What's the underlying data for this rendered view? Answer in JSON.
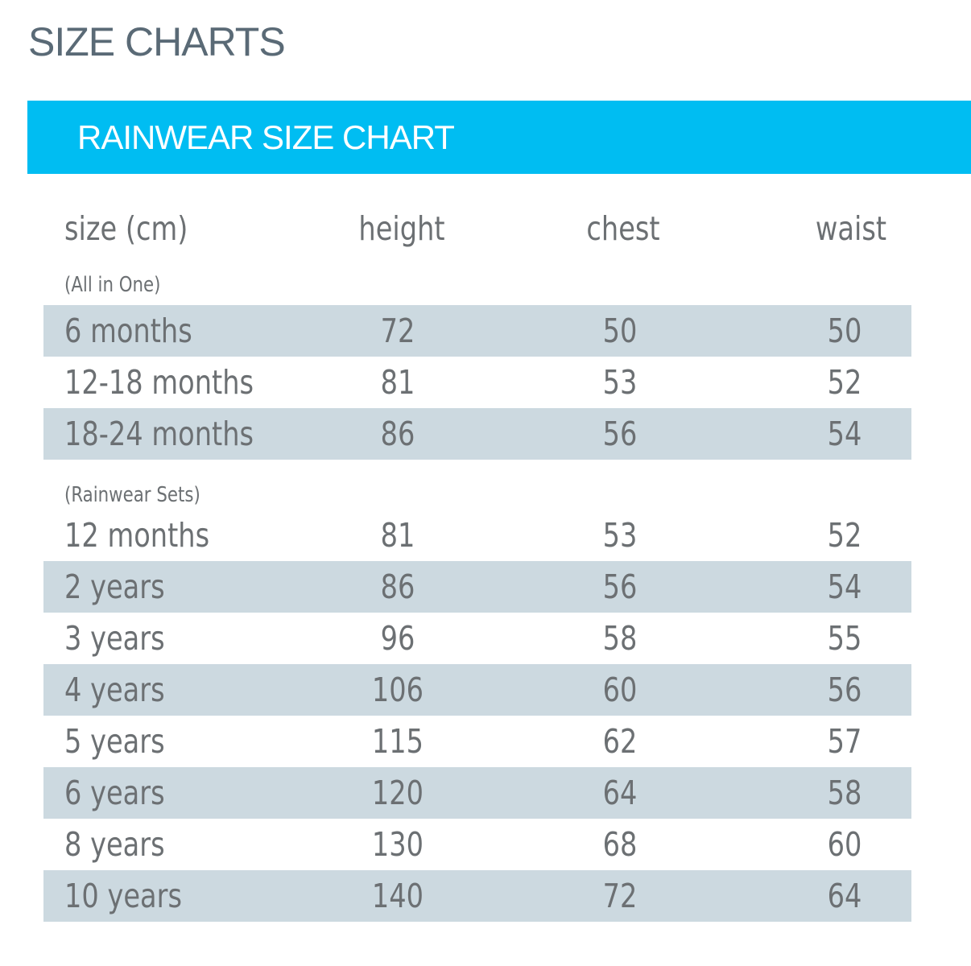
{
  "page": {
    "title": "SIZE CHARTS"
  },
  "banner": {
    "title": "RAINWEAR SIZE CHART"
  },
  "colors": {
    "banner_bg": "#00bdf2",
    "row_shade": "#ccd9e0",
    "text": "#6c7073",
    "title_text": "#5a6a76"
  },
  "table": {
    "headers": {
      "size": "size (cm)",
      "height": "height",
      "chest": "chest",
      "waist": "waist"
    },
    "sections": [
      {
        "label": "(All in One)",
        "rows": [
          {
            "size": "6 months",
            "height": "72",
            "chest": "50",
            "waist": "50"
          },
          {
            "size": "12-18 months",
            "height": "81",
            "chest": "53",
            "waist": "52"
          },
          {
            "size": "18-24 months",
            "height": "86",
            "chest": "56",
            "waist": "54"
          }
        ]
      },
      {
        "label": "(Rainwear Sets)",
        "rows": [
          {
            "size": "12 months",
            "height": "81",
            "chest": "53",
            "waist": "52"
          },
          {
            "size": "2 years",
            "height": "86",
            "chest": "56",
            "waist": "54"
          },
          {
            "size": "3 years",
            "height": "96",
            "chest": "58",
            "waist": "55"
          },
          {
            "size": "4 years",
            "height": "106",
            "chest": "60",
            "waist": "56"
          },
          {
            "size": "5 years",
            "height": "115",
            "chest": "62",
            "waist": "57"
          },
          {
            "size": "6 years",
            "height": "120",
            "chest": "64",
            "waist": "58"
          },
          {
            "size": "8 years",
            "height": "130",
            "chest": "68",
            "waist": "60"
          },
          {
            "size": "10 years",
            "height": "140",
            "chest": "72",
            "waist": "64"
          }
        ]
      }
    ]
  }
}
